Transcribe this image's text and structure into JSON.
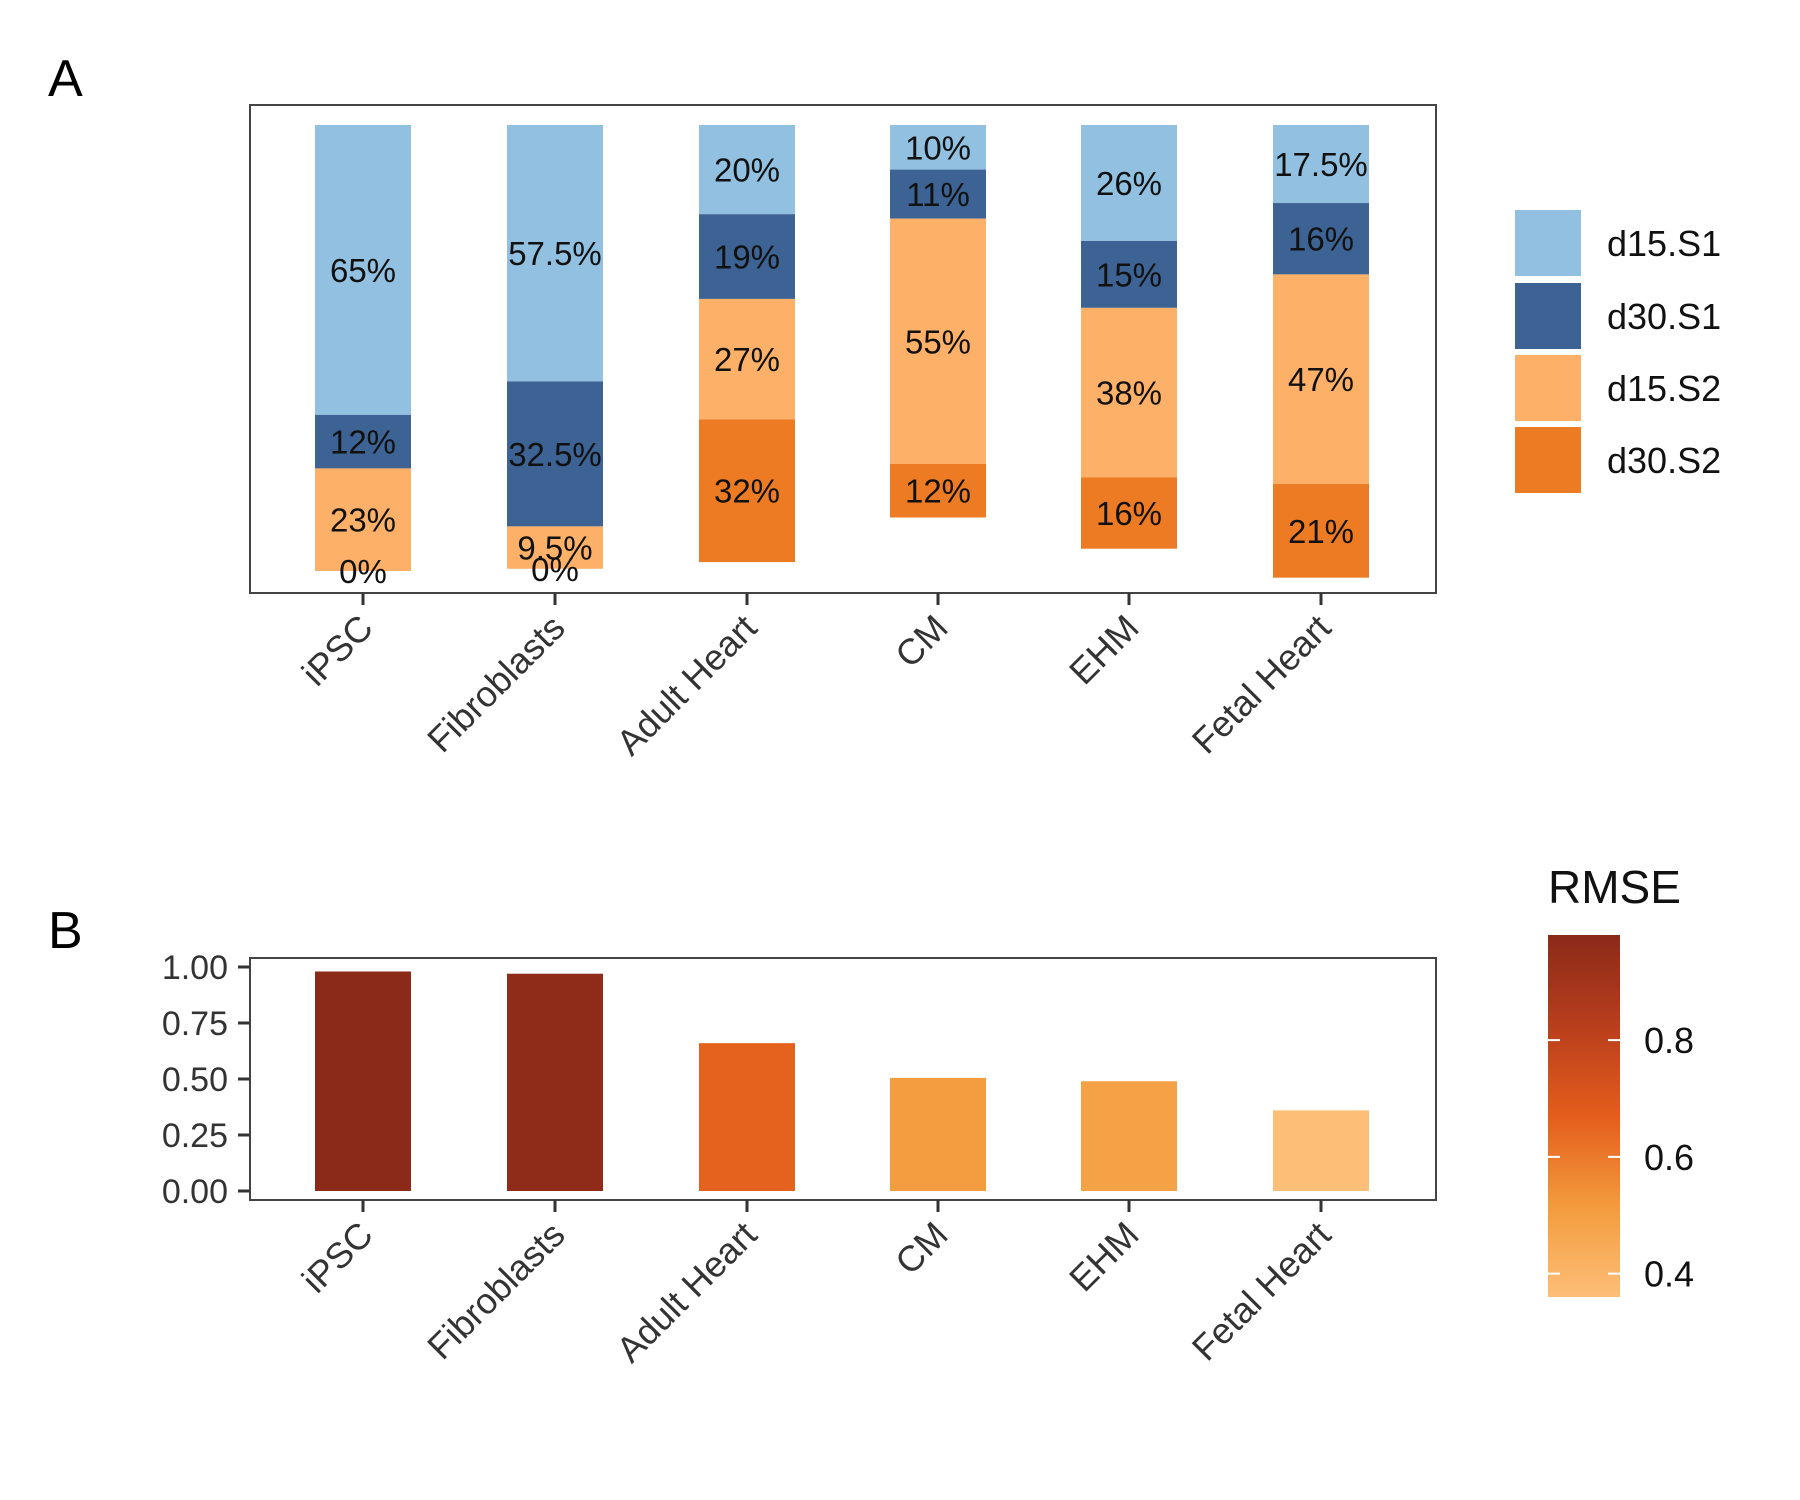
{
  "panel_labels": [
    "A",
    "B"
  ],
  "chart_data": [
    {
      "type": "bar",
      "stacked": true,
      "panel": "A",
      "categories": [
        "iPSC",
        "Fibroblasts",
        "Adult Heart",
        "CM",
        "EHM",
        "Fetal Heart"
      ],
      "series": [
        {
          "name": "d15.S1",
          "color": "#92c0e1",
          "values": [
            65,
            57.5,
            20,
            10,
            26,
            17.5
          ],
          "labels": [
            "65%",
            "57.5%",
            "20%",
            "10%",
            "26%",
            "17.5%"
          ]
        },
        {
          "name": "d30.S1",
          "color": "#3c6394",
          "values": [
            12,
            32.5,
            19,
            11,
            15,
            16
          ],
          "labels": [
            "12%",
            "32.5%",
            "19%",
            "11%",
            "15%",
            "16%"
          ]
        },
        {
          "name": "d15.S2",
          "color": "#fdb068",
          "values": [
            23,
            9.5,
            27,
            55,
            38,
            47
          ],
          "labels": [
            "23%",
            "9.5%",
            "27%",
            "55%",
            "38%",
            "47%"
          ]
        },
        {
          "name": "d30.S2",
          "color": "#ec7b24",
          "values": [
            0,
            0,
            32,
            12,
            16,
            21
          ],
          "labels": [
            "0%",
            "0%",
            "32%",
            "12%",
            "16%",
            "21%"
          ]
        }
      ],
      "legend": "right",
      "ylim": [
        0,
        100
      ],
      "grid": false
    },
    {
      "type": "bar",
      "panel": "B",
      "categories": [
        "iPSC",
        "Fibroblasts",
        "Adult Heart",
        "CM",
        "EHM",
        "Fetal Heart"
      ],
      "values": [
        0.98,
        0.97,
        0.66,
        0.505,
        0.49,
        0.36
      ],
      "ylim": [
        0,
        1.0
      ],
      "yticks": [
        "0.00",
        "0.25",
        "0.50",
        "0.75",
        "1.00"
      ],
      "ytick_values": [
        0,
        0.25,
        0.5,
        0.75,
        1.0
      ],
      "legend_title": "RMSE",
      "colorbar": {
        "range": [
          0.36,
          0.98
        ],
        "ticks": [
          0.4,
          0.6,
          0.8
        ],
        "tick_labels": [
          "0.4",
          "0.6",
          "0.8"
        ],
        "colors": [
          "#fdbe78",
          "#f39b3c",
          "#e45d1c",
          "#b83e1c",
          "#8b2a19"
        ]
      },
      "grid": false
    }
  ]
}
